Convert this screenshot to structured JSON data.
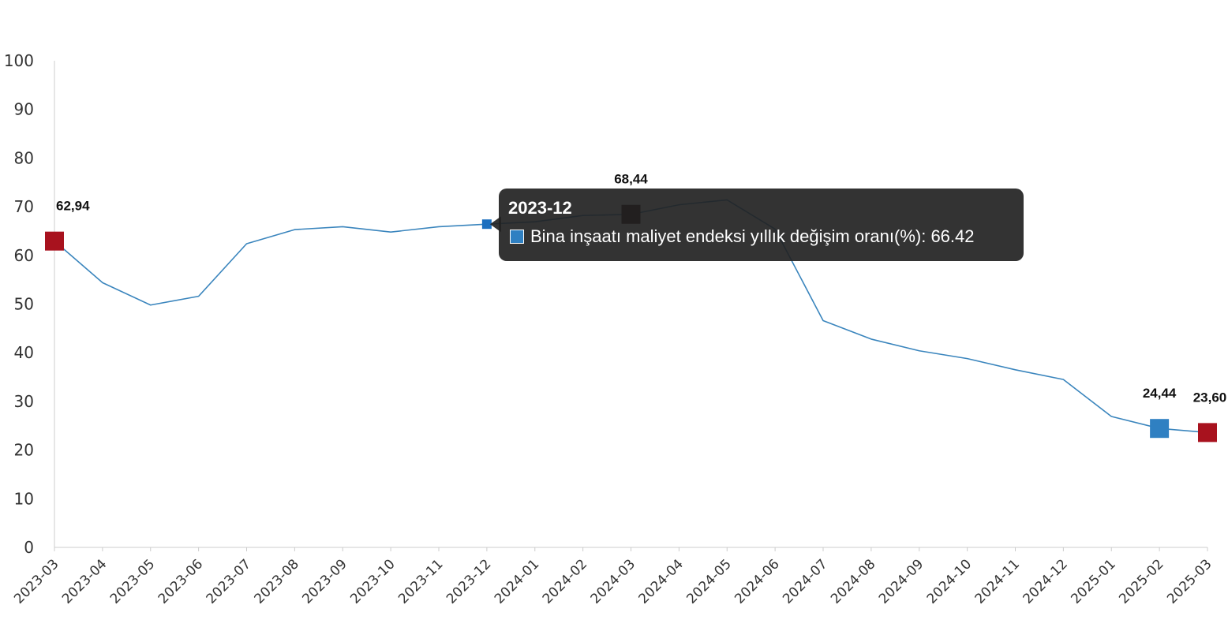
{
  "chart_data": {
    "type": "line",
    "categories": [
      "2023-03",
      "2023-04",
      "2023-05",
      "2023-06",
      "2023-07",
      "2023-08",
      "2023-09",
      "2023-10",
      "2023-11",
      "2023-12",
      "2024-01",
      "2024-02",
      "2024-03",
      "2024-04",
      "2024-05",
      "2024-06",
      "2024-07",
      "2024-08",
      "2024-09",
      "2024-10",
      "2024-11",
      "2024-12",
      "2025-01",
      "2025-02",
      "2025-03"
    ],
    "series": [
      {
        "values": [
          62.94,
          54.4,
          49.8,
          51.6,
          62.4,
          65.3,
          65.9,
          64.8,
          65.9,
          66.42,
          66.9,
          68.2,
          68.44,
          70.4,
          71.4,
          65.4,
          46.6,
          42.8,
          40.4,
          38.8,
          36.5,
          34.5,
          26.9,
          24.44,
          23.6
        ],
        "color": "#3a85bd"
      }
    ],
    "ylim": [
      0,
      100
    ],
    "yticks": [
      "0",
      "10",
      "20",
      "30",
      "40",
      "50",
      "60",
      "70",
      "80",
      "90",
      "100"
    ],
    "grid": false,
    "legend": "none",
    "data_labels": [
      {
        "index": 0,
        "text": "62,94",
        "marker_color": "#a8121e"
      },
      {
        "index": 12,
        "text": "68,44",
        "marker_color": "#2a0a0a"
      },
      {
        "index": 23,
        "text": "24,44",
        "marker_color": "#2f80c2"
      },
      {
        "index": 24,
        "text": "23,60",
        "marker_color": "#a8121e"
      }
    ],
    "highlighted_index": 9,
    "highlight_color": "#1b6fbf"
  },
  "tooltip": {
    "title": "2023-12",
    "series_label": "Bina inşaatı maliyet endeksi yıllık değişim oranı(%)",
    "value_text": ": 66.42",
    "swatch_color": "#2f80c2"
  },
  "colors": {
    "axis": "#cccccc",
    "tick_text": "#333333"
  }
}
